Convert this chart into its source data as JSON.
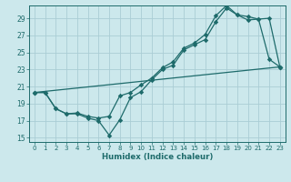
{
  "xlabel": "Humidex (Indice chaleur)",
  "bg_color": "#cce8ec",
  "grid_color": "#aacdd5",
  "line_color": "#1e6b6b",
  "xlim": [
    -0.5,
    23.5
  ],
  "ylim": [
    14.5,
    30.5
  ],
  "xticks": [
    0,
    1,
    2,
    3,
    4,
    5,
    6,
    7,
    8,
    9,
    10,
    11,
    12,
    13,
    14,
    15,
    16,
    17,
    18,
    19,
    20,
    21,
    22,
    23
  ],
  "yticks": [
    15,
    17,
    19,
    21,
    23,
    25,
    27,
    29
  ],
  "line1_x": [
    0,
    1,
    2,
    3,
    4,
    5,
    6,
    7,
    8,
    9,
    10,
    11,
    12,
    13,
    14,
    15,
    16,
    17,
    18,
    19,
    20,
    21,
    22,
    23
  ],
  "line1_y": [
    20.3,
    20.3,
    18.4,
    17.8,
    17.8,
    17.3,
    17.0,
    15.3,
    17.1,
    19.7,
    20.4,
    21.8,
    23.0,
    23.5,
    25.3,
    25.9,
    26.5,
    28.6,
    30.2,
    29.4,
    29.2,
    28.9,
    29.0,
    23.3
  ],
  "line2_x": [
    0,
    1,
    2,
    3,
    4,
    5,
    6,
    7,
    8,
    9,
    10,
    11,
    12,
    13,
    14,
    15,
    16,
    17,
    18,
    19,
    20,
    21,
    22,
    23
  ],
  "line2_y": [
    20.3,
    20.3,
    18.4,
    17.8,
    17.9,
    17.5,
    17.3,
    17.5,
    19.9,
    20.3,
    21.2,
    22.0,
    23.2,
    23.9,
    25.5,
    26.1,
    27.1,
    29.3,
    30.5,
    29.4,
    28.8,
    28.9,
    24.2,
    23.3
  ],
  "line3_x": [
    0,
    23
  ],
  "line3_y": [
    20.3,
    23.3
  ]
}
